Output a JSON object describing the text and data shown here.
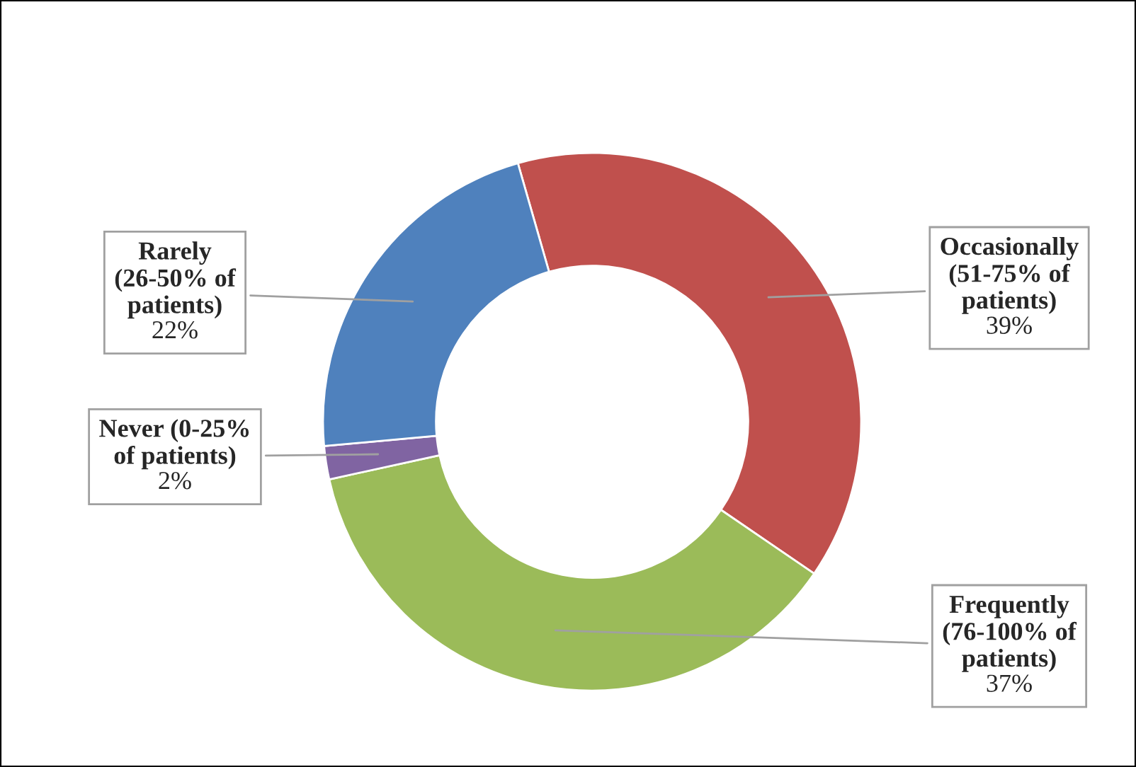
{
  "chart_data": {
    "type": "donut",
    "categories": [
      "Occasionally (51-75% of patients)",
      "Frequently (76-100% of patients)",
      "Never (0-25% of patients)",
      "Rarely (26-50% of patients)"
    ],
    "values": [
      39,
      37,
      2,
      22
    ],
    "colors": [
      "#c0504d",
      "#9bbb59",
      "#8064a2",
      "#4f81bd"
    ],
    "value_labels": [
      "39%",
      "37%",
      "2%",
      "22%"
    ],
    "legend": false
  }
}
